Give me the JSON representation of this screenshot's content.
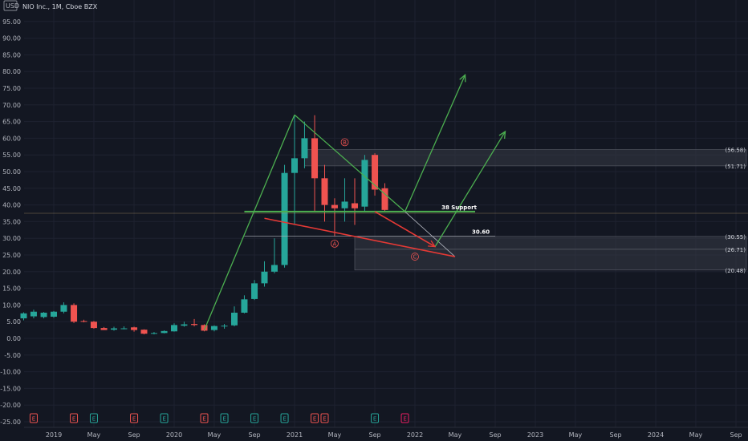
{
  "header": {
    "title": "NIO Inc., 1M, Cboe BZX",
    "currency": "USD"
  },
  "colors": {
    "background": "#131722",
    "grid": "#1e2230",
    "up": "#26a69a",
    "down": "#ef5350",
    "green_line": "#4caf50",
    "red_line": "#e53935",
    "zone_fill": "#2a2e39",
    "horizontal_line": "#b9a06b"
  },
  "chart_data": {
    "type": "candlestick",
    "title": "NIO Inc., 1M, Cboe BZX",
    "ylim": [
      -25,
      100
    ],
    "y_ticks": [
      "95.00",
      "90.00",
      "85.00",
      "80.00",
      "75.00",
      "70.00",
      "65.00",
      "60.00",
      "55.00",
      "50.00",
      "45.00",
      "40.00",
      "35.00",
      "30.00",
      "25.00",
      "20.00",
      "15.00",
      "10.00",
      "5.00",
      "0.00",
      "-5.00",
      "-10.00",
      "-15.00",
      "-20.00",
      "-25.00"
    ],
    "x_labels": [
      {
        "label": "2019",
        "t": 2019.0
      },
      {
        "label": "May",
        "t": 2019.333
      },
      {
        "label": "Sep",
        "t": 2019.667
      },
      {
        "label": "2020",
        "t": 2020.0
      },
      {
        "label": "May",
        "t": 2020.333
      },
      {
        "label": "Sep",
        "t": 2020.667
      },
      {
        "label": "2021",
        "t": 2021.0
      },
      {
        "label": "May",
        "t": 2021.333
      },
      {
        "label": "Sep",
        "t": 2021.667
      },
      {
        "label": "2022",
        "t": 2022.0
      },
      {
        "label": "May",
        "t": 2022.333
      },
      {
        "label": "Sep",
        "t": 2022.667
      },
      {
        "label": "2023",
        "t": 2023.0
      },
      {
        "label": "May",
        "t": 2023.333
      },
      {
        "label": "Sep",
        "t": 2023.667
      },
      {
        "label": "2024",
        "t": 2024.0
      },
      {
        "label": "May",
        "t": 2024.333
      },
      {
        "label": "Sep",
        "t": 2024.667
      }
    ],
    "candles": [
      {
        "t": 2018.75,
        "o": 6.0,
        "h": 7.8,
        "l": 5.4,
        "c": 7.5
      },
      {
        "t": 2018.833,
        "o": 6.6,
        "h": 8.6,
        "l": 6.0,
        "c": 8.0
      },
      {
        "t": 2018.917,
        "o": 6.4,
        "h": 7.9,
        "l": 6.0,
        "c": 7.7
      },
      {
        "t": 2019.0,
        "o": 6.5,
        "h": 8.2,
        "l": 6.2,
        "c": 8.0
      },
      {
        "t": 2019.083,
        "o": 8.0,
        "h": 10.8,
        "l": 7.5,
        "c": 10.0
      },
      {
        "t": 2019.167,
        "o": 10.0,
        "h": 10.5,
        "l": 4.6,
        "c": 5.0
      },
      {
        "t": 2019.25,
        "o": 5.2,
        "h": 5.6,
        "l": 4.8,
        "c": 5.0
      },
      {
        "t": 2019.333,
        "o": 5.0,
        "h": 5.2,
        "l": 2.9,
        "c": 3.1
      },
      {
        "t": 2019.417,
        "o": 3.1,
        "h": 3.4,
        "l": 2.5,
        "c": 2.5
      },
      {
        "t": 2019.5,
        "o": 2.6,
        "h": 3.5,
        "l": 2.3,
        "c": 3.0
      },
      {
        "t": 2019.583,
        "o": 3.0,
        "h": 3.6,
        "l": 2.7,
        "c": 3.0
      },
      {
        "t": 2019.667,
        "o": 3.3,
        "h": 3.5,
        "l": 2.0,
        "c": 2.5
      },
      {
        "t": 2019.75,
        "o": 2.6,
        "h": 2.7,
        "l": 1.2,
        "c": 1.4
      },
      {
        "t": 2019.833,
        "o": 1.4,
        "h": 1.9,
        "l": 1.2,
        "c": 1.6
      },
      {
        "t": 2019.917,
        "o": 1.6,
        "h": 2.4,
        "l": 1.5,
        "c": 2.2
      },
      {
        "t": 2020.0,
        "o": 2.1,
        "h": 4.5,
        "l": 2.0,
        "c": 4.0
      },
      {
        "t": 2020.083,
        "o": 3.8,
        "h": 5.0,
        "l": 3.5,
        "c": 4.2
      },
      {
        "t": 2020.167,
        "o": 4.3,
        "h": 5.8,
        "l": 3.6,
        "c": 4.0
      },
      {
        "t": 2020.25,
        "o": 4.0,
        "h": 4.2,
        "l": 2.1,
        "c": 2.3
      },
      {
        "t": 2020.333,
        "o": 2.5,
        "h": 3.9,
        "l": 2.1,
        "c": 3.7
      },
      {
        "t": 2020.417,
        "o": 3.6,
        "h": 4.3,
        "l": 2.9,
        "c": 3.8
      },
      {
        "t": 2020.5,
        "o": 3.9,
        "h": 9.6,
        "l": 3.6,
        "c": 7.7
      },
      {
        "t": 2020.583,
        "o": 7.7,
        "h": 12.9,
        "l": 7.5,
        "c": 11.7
      },
      {
        "t": 2020.667,
        "o": 11.8,
        "h": 17.5,
        "l": 11.5,
        "c": 16.5
      },
      {
        "t": 2020.75,
        "o": 16.5,
        "h": 23.1,
        "l": 15.5,
        "c": 20.0
      },
      {
        "t": 2020.833,
        "o": 20.0,
        "h": 30.0,
        "l": 19.5,
        "c": 22.0
      },
      {
        "t": 2020.917,
        "o": 22.0,
        "h": 52.0,
        "l": 21.2,
        "c": 49.6
      },
      {
        "t": 2021.0,
        "o": 49.6,
        "h": 67.0,
        "l": 34.0,
        "c": 54.0
      },
      {
        "t": 2021.083,
        "o": 54.0,
        "h": 65.0,
        "l": 51.0,
        "c": 60.0
      },
      {
        "t": 2021.167,
        "o": 60.0,
        "h": 66.9,
        "l": 38.0,
        "c": 48.0
      },
      {
        "t": 2021.25,
        "o": 48.0,
        "h": 52.0,
        "l": 35.0,
        "c": 40.0
      },
      {
        "t": 2021.333,
        "o": 40.0,
        "h": 42.0,
        "l": 30.7,
        "c": 39.0
      },
      {
        "t": 2021.417,
        "o": 39.0,
        "h": 48.0,
        "l": 35.0,
        "c": 41.0
      },
      {
        "t": 2021.5,
        "o": 40.5,
        "h": 48.0,
        "l": 34.0,
        "c": 39.0
      },
      {
        "t": 2021.583,
        "o": 39.5,
        "h": 55.0,
        "l": 38.0,
        "c": 53.5
      },
      {
        "t": 2021.667,
        "o": 55.0,
        "h": 55.5,
        "l": 42.8,
        "c": 44.6
      },
      {
        "t": 2021.75,
        "o": 45.0,
        "h": 46.5,
        "l": 38.0,
        "c": 38.5
      }
    ],
    "earnings_markers": [
      {
        "t": 2018.833,
        "type": "E",
        "color": "#ef5350"
      },
      {
        "t": 2019.167,
        "type": "E",
        "color": "#ef5350"
      },
      {
        "t": 2019.333,
        "type": "E",
        "color": "#26a69a"
      },
      {
        "t": 2019.667,
        "type": "E",
        "color": "#ef5350"
      },
      {
        "t": 2019.917,
        "type": "E",
        "color": "#26a69a"
      },
      {
        "t": 2020.25,
        "type": "E",
        "color": "#ef5350"
      },
      {
        "t": 2020.417,
        "type": "E",
        "color": "#26a69a"
      },
      {
        "t": 2020.667,
        "type": "E",
        "color": "#26a69a"
      },
      {
        "t": 2020.917,
        "type": "E",
        "color": "#26a69a"
      },
      {
        "t": 2021.167,
        "type": "E",
        "color": "#ef5350"
      },
      {
        "t": 2021.25,
        "type": "E",
        "color": "#ef5350"
      },
      {
        "t": 2021.667,
        "type": "E",
        "color": "#26a69a"
      },
      {
        "t": 2021.917,
        "type": "E",
        "color": "#e91e63"
      }
    ],
    "zones": [
      {
        "t1": 2021.083,
        "t2": 2026,
        "y1": 51.71,
        "y2": 56.58,
        "label_top": "(56.58)",
        "label_bottom": "(51.71)"
      },
      {
        "t1": 2021.5,
        "t2": 2026,
        "y1": 26.71,
        "y2": 30.55,
        "label_top": "(30.55)",
        "label_bottom": "(26.71)"
      },
      {
        "t1": 2021.5,
        "t2": 2026,
        "y1": 20.48,
        "y2": 26.71,
        "label_top": "",
        "label_bottom": "(20.48)"
      }
    ],
    "support_line": {
      "y": 38.0,
      "t1": 2020.583,
      "t2": 2022.5,
      "label": "38 Support"
    },
    "line_30_60": {
      "y": 30.6,
      "t1": 2020.583,
      "t2": 2022.667,
      "label": "30.60"
    },
    "long_horizontal": {
      "y": 37.5
    },
    "green_lines": [
      {
        "t1": 2020.25,
        "y1": 2.5,
        "t2": 2021.0,
        "y2": 67.0
      },
      {
        "t1": 2021.0,
        "y1": 67.0,
        "t2": 2021.917,
        "y2": 38.0
      },
      {
        "t1": 2021.917,
        "y1": 38.0,
        "t2": 2022.417,
        "y2": 79.0,
        "arrow": true
      },
      {
        "t1": 2022.167,
        "y1": 27.5,
        "t2": 2022.75,
        "y2": 62.0,
        "arrow": true
      }
    ],
    "red_lines": [
      {
        "t1": 2020.75,
        "y1": 36.0,
        "t2": 2022.333,
        "y2": 24.5
      },
      {
        "t1": 2021.667,
        "y1": 38.0,
        "t2": 2022.167,
        "y2": 27.5,
        "arrow": true
      }
    ],
    "gray_lines": [
      {
        "t1": 2021.917,
        "y1": 38.0,
        "t2": 2022.333,
        "y2": 24.5
      }
    ],
    "circle_labels": [
      {
        "t": 2021.417,
        "y": 58.8,
        "label": "B",
        "color": "#ef5350"
      },
      {
        "t": 2021.333,
        "y": 28.4,
        "label": "A",
        "color": "#ef5350"
      },
      {
        "t": 2022.0,
        "y": 24.5,
        "label": "C",
        "color": "#ef5350"
      }
    ]
  }
}
